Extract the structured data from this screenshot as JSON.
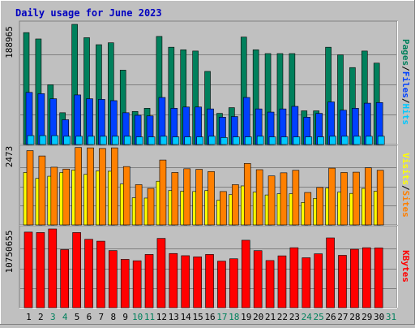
{
  "title": "Daily usage for June 2023",
  "colors": {
    "background": "#c0c0c0",
    "title": "#0000c0",
    "hits": "#00805c",
    "files": "#0040ff",
    "pages": "#00c8ff",
    "visits": "#ffff00",
    "sites": "#ff8000",
    "kbytes": "#ff0000",
    "weekend_label": "#00805c",
    "weekday_label": "#000000"
  },
  "chart_data": [
    {
      "type": "bar",
      "panel": "hits-files-pages",
      "categories": [
        "1",
        "2",
        "3",
        "4",
        "5",
        "6",
        "7",
        "8",
        "9",
        "10",
        "11",
        "12",
        "13",
        "14",
        "15",
        "16",
        "17",
        "18",
        "19",
        "20",
        "21",
        "22",
        "23",
        "24",
        "25",
        "26",
        "27",
        "28",
        "29",
        "30",
        "31"
      ],
      "weekend_days": [
        "3",
        "4",
        "10",
        "11",
        "17",
        "18",
        "24",
        "25",
        "31"
      ],
      "y_max_label": "188965",
      "ylim": [
        0,
        188965
      ],
      "legend": [
        "Hits",
        "/",
        "Files",
        "/",
        "Pages"
      ],
      "series": [
        {
          "name": "Hits",
          "values": [
            176000,
            166000,
            94000,
            50000,
            188965,
            168000,
            157000,
            160000,
            117000,
            52000,
            57000,
            170000,
            153000,
            149000,
            147000,
            115000,
            49000,
            58000,
            169000,
            149000,
            143000,
            143000,
            143000,
            53000,
            53000,
            153000,
            141000,
            121000,
            147000,
            128000,
            0
          ]
        },
        {
          "name": "Files",
          "values": [
            82000,
            80000,
            72000,
            39000,
            78000,
            72000,
            71000,
            69000,
            50000,
            46000,
            45000,
            74000,
            57000,
            59000,
            59000,
            56000,
            43000,
            44000,
            74000,
            56000,
            51000,
            56000,
            60000,
            43000,
            49000,
            67000,
            54000,
            57000,
            65000,
            66000,
            0
          ]
        },
        {
          "name": "Pages",
          "values": [
            14000,
            14000,
            14000,
            13000,
            13000,
            13000,
            13000,
            13000,
            13000,
            12000,
            12000,
            13000,
            12000,
            12000,
            12000,
            13000,
            11000,
            12000,
            12000,
            13000,
            12000,
            12000,
            12000,
            12000,
            12000,
            13000,
            13000,
            13000,
            13000,
            13000,
            0
          ]
        }
      ]
    },
    {
      "type": "bar",
      "panel": "visits-sites",
      "categories": [
        "1",
        "2",
        "3",
        "4",
        "5",
        "6",
        "7",
        "8",
        "9",
        "10",
        "11",
        "12",
        "13",
        "14",
        "15",
        "16",
        "17",
        "18",
        "19",
        "20",
        "21",
        "22",
        "23",
        "24",
        "25",
        "26",
        "27",
        "28",
        "29",
        "30",
        "31"
      ],
      "y_max_label": "2473",
      "ylim": [
        0,
        2473
      ],
      "legend": [
        "Sites",
        "/",
        "Visits"
      ],
      "series": [
        {
          "name": "Sites",
          "values": [
            2380,
            2210,
            1850,
            1790,
            2480,
            2470,
            2450,
            2470,
            1870,
            1290,
            1170,
            2080,
            1680,
            1800,
            1780,
            1710,
            1070,
            1290,
            1970,
            1770,
            1570,
            1670,
            1750,
            1040,
            1200,
            1820,
            1680,
            1690,
            1830,
            1750,
            0
          ]
        },
        {
          "name": "Visits",
          "values": [
            1680,
            1490,
            1560,
            1680,
            1760,
            1620,
            1730,
            1720,
            1310,
            870,
            860,
            1400,
            1100,
            1080,
            1070,
            1100,
            790,
            970,
            1250,
            1050,
            960,
            1000,
            1000,
            720,
            850,
            1180,
            1050,
            1010,
            1170,
            1080,
            0
          ]
        }
      ]
    },
    {
      "type": "bar",
      "panel": "kbytes",
      "categories": [
        "1",
        "2",
        "3",
        "4",
        "5",
        "6",
        "7",
        "8",
        "9",
        "10",
        "11",
        "12",
        "13",
        "14",
        "15",
        "16",
        "17",
        "18",
        "19",
        "20",
        "21",
        "22",
        "23",
        "24",
        "25",
        "26",
        "27",
        "28",
        "29",
        "30",
        "31"
      ],
      "y_max_label": "10750655",
      "ylim": [
        0,
        10750655
      ],
      "legend": [
        "KBytes"
      ],
      "series": [
        {
          "name": "KBytes",
          "values": [
            10320000,
            10260000,
            10750655,
            7930000,
            10260000,
            9340000,
            9080000,
            7800000,
            6600000,
            6410000,
            7270000,
            9460000,
            7400000,
            7100000,
            6940000,
            7270000,
            6360000,
            6680000,
            9210000,
            7790000,
            6440000,
            7080000,
            8190000,
            6820000,
            7360000,
            9530000,
            7150000,
            7980000,
            8190000,
            8170000,
            0
          ]
        }
      ]
    }
  ]
}
